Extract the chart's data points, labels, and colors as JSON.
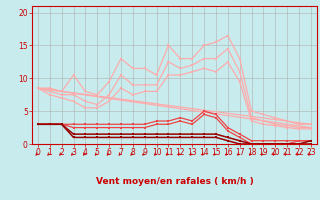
{
  "bg_color": "#c8ecee",
  "grid_color": "#b0b0b0",
  "xlabel": "Vent moyen/en rafales ( km/h )",
  "xlabel_color": "#cc0000",
  "yticks": [
    0,
    5,
    10,
    15,
    20
  ],
  "xtick_labels": [
    "0",
    "1",
    "2",
    "3",
    "4",
    "5",
    "6",
    "7",
    "8",
    "9",
    "10",
    "11",
    "12",
    "13",
    "14",
    "15",
    "16",
    "17",
    "18",
    "19",
    "20",
    "21",
    "22",
    "23"
  ],
  "ylim": [
    0,
    21
  ],
  "xlim": [
    -0.5,
    23.5
  ],
  "series": [
    {
      "name": "fan_top",
      "color": "#ffaaaa",
      "lw": 0.9,
      "marker": "s",
      "ms": 2.0,
      "x": [
        0,
        1,
        2,
        3,
        4,
        5,
        6,
        7,
        8,
        9,
        10,
        11,
        12,
        13,
        14,
        15,
        16,
        17,
        18,
        19,
        20,
        21,
        22,
        23
      ],
      "y": [
        8.5,
        8.5,
        8.0,
        10.5,
        8.0,
        7.5,
        9.5,
        13.0,
        11.5,
        11.5,
        10.5,
        15.0,
        13.0,
        13.0,
        15.0,
        15.5,
        16.5,
        13.0,
        5.0,
        4.5,
        4.0,
        3.5,
        3.0,
        3.0
      ]
    },
    {
      "name": "fan_mid",
      "color": "#ffaaaa",
      "lw": 0.9,
      "marker": "s",
      "ms": 2.0,
      "x": [
        0,
        1,
        2,
        3,
        4,
        5,
        6,
        7,
        8,
        9,
        10,
        11,
        12,
        13,
        14,
        15,
        16,
        17,
        18,
        19,
        20,
        21,
        22,
        23
      ],
      "y": [
        8.5,
        8.0,
        7.5,
        7.5,
        6.5,
        6.0,
        7.5,
        10.5,
        9.0,
        9.0,
        9.0,
        12.5,
        11.5,
        12.0,
        13.0,
        13.0,
        14.5,
        11.0,
        4.0,
        3.5,
        3.0,
        2.8,
        2.5,
        2.5
      ]
    },
    {
      "name": "fan_lower",
      "color": "#ffaaaa",
      "lw": 0.9,
      "marker": "s",
      "ms": 2.0,
      "x": [
        0,
        1,
        2,
        3,
        4,
        5,
        6,
        7,
        8,
        9,
        10,
        11,
        12,
        13,
        14,
        15,
        16,
        17,
        18,
        19,
        20,
        21,
        22,
        23
      ],
      "y": [
        8.5,
        7.5,
        7.0,
        6.5,
        5.5,
        5.5,
        6.5,
        8.5,
        7.5,
        8.0,
        8.0,
        10.5,
        10.5,
        11.0,
        11.5,
        11.0,
        12.5,
        9.5,
        3.5,
        3.0,
        2.8,
        2.5,
        2.3,
        2.3
      ]
    },
    {
      "name": "diagonal_top",
      "color": "#ffaaaa",
      "lw": 0.9,
      "marker": null,
      "ms": 0,
      "x": [
        0,
        23
      ],
      "y": [
        8.5,
        3.0
      ]
    },
    {
      "name": "diagonal_bot",
      "color": "#ffaaaa",
      "lw": 0.9,
      "marker": null,
      "ms": 0,
      "x": [
        0,
        23
      ],
      "y": [
        8.5,
        2.5
      ]
    },
    {
      "name": "mid_red_high",
      "color": "#ee4444",
      "lw": 0.9,
      "marker": "s",
      "ms": 2.0,
      "x": [
        0,
        1,
        2,
        3,
        4,
        5,
        6,
        7,
        8,
        9,
        10,
        11,
        12,
        13,
        14,
        15,
        16,
        17,
        18,
        19,
        20,
        21,
        22,
        23
      ],
      "y": [
        3.0,
        3.0,
        3.0,
        3.0,
        3.0,
        3.0,
        3.0,
        3.0,
        3.0,
        3.0,
        3.5,
        3.5,
        4.0,
        3.5,
        5.0,
        4.5,
        2.5,
        1.5,
        0.5,
        0.5,
        0.5,
        0.5,
        0.5,
        0.5
      ]
    },
    {
      "name": "mid_red_low",
      "color": "#ee4444",
      "lw": 0.9,
      "marker": "s",
      "ms": 2.0,
      "x": [
        0,
        1,
        2,
        3,
        4,
        5,
        6,
        7,
        8,
        9,
        10,
        11,
        12,
        13,
        14,
        15,
        16,
        17,
        18,
        19,
        20,
        21,
        22,
        23
      ],
      "y": [
        3.0,
        3.0,
        3.0,
        2.5,
        2.5,
        2.5,
        2.5,
        2.5,
        2.5,
        2.5,
        3.0,
        3.0,
        3.5,
        3.0,
        4.5,
        4.0,
        2.0,
        1.0,
        0.0,
        0.0,
        0.0,
        0.0,
        0.5,
        0.5
      ]
    },
    {
      "name": "dark_red1",
      "color": "#990000",
      "lw": 1.1,
      "marker": "s",
      "ms": 2.0,
      "x": [
        0,
        1,
        2,
        3,
        4,
        5,
        6,
        7,
        8,
        9,
        10,
        11,
        12,
        13,
        14,
        15,
        16,
        17,
        18,
        19,
        20,
        21,
        22,
        23
      ],
      "y": [
        3.0,
        3.0,
        3.0,
        1.5,
        1.5,
        1.5,
        1.5,
        1.5,
        1.5,
        1.5,
        1.5,
        1.5,
        1.5,
        1.5,
        1.5,
        1.5,
        1.0,
        0.5,
        0.0,
        0.0,
        0.0,
        0.0,
        0.0,
        0.0
      ]
    },
    {
      "name": "dark_red2",
      "color": "#990000",
      "lw": 1.1,
      "marker": "s",
      "ms": 2.0,
      "x": [
        0,
        1,
        2,
        3,
        4,
        5,
        6,
        7,
        8,
        9,
        10,
        11,
        12,
        13,
        14,
        15,
        16,
        17,
        18,
        19,
        20,
        21,
        22,
        23
      ],
      "y": [
        3.0,
        3.0,
        3.0,
        1.0,
        1.0,
        1.0,
        1.0,
        1.0,
        1.0,
        1.0,
        1.0,
        1.0,
        1.0,
        1.0,
        1.0,
        1.0,
        0.5,
        0.0,
        0.0,
        0.0,
        0.0,
        0.0,
        0.0,
        0.5
      ]
    }
  ],
  "arrow_color": "#cc0000",
  "tick_fontsize": 5.5,
  "xlabel_fontsize": 6.5
}
